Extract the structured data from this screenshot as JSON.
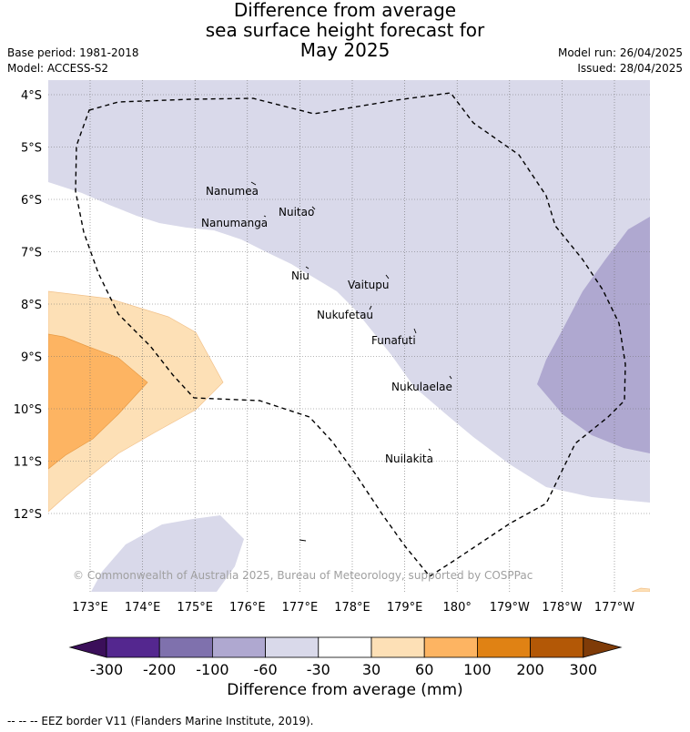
{
  "title": {
    "line1": "Difference from average",
    "line2": "sea surface height forecast for",
    "line3": "May 2025"
  },
  "meta": {
    "base_period": "Base period: 1981-2018",
    "model": "Model: ACCESS-S2",
    "model_run": "Model run: 26/04/2025",
    "issued": "Issued: 28/04/2025"
  },
  "map": {
    "lat_labels": [
      "4°S",
      "5°S",
      "6°S",
      "7°S",
      "8°S",
      "9°S",
      "10°S",
      "11°S",
      "12°S"
    ],
    "lon_labels": [
      "173°E",
      "174°E",
      "175°E",
      "176°E",
      "177°E",
      "178°E",
      "179°E",
      "180°",
      "179°W",
      "178°W",
      "177°W"
    ],
    "places": [
      {
        "name": "Nanumea"
      },
      {
        "name": "Nuitao"
      },
      {
        "name": "Nanumanga"
      },
      {
        "name": "Niu"
      },
      {
        "name": "Vaitupu"
      },
      {
        "name": "Nukufetau"
      },
      {
        "name": "Funafuti"
      },
      {
        "name": "Nukulaelae"
      },
      {
        "name": "Nuilakita"
      }
    ],
    "copyright": "© Commonwealth of Australia 2025, Bureau of Meteorology, supported by COSPPac"
  },
  "legend": {
    "title": "Difference from average (mm)",
    "tick_labels": [
      "-300",
      "-200",
      "-100",
      "-60",
      "-30",
      "30",
      "60",
      "100",
      "200",
      "300"
    ],
    "colors": [
      "#3b0f5a",
      "#54278f",
      "#7f71ad",
      "#afa8d0",
      "#d9d9ea",
      "#ffffff",
      "#fde0b6",
      "#fdb462",
      "#e08214",
      "#b35806",
      "#7f3b08"
    ]
  },
  "footnote": "-- -- -- EEZ border V11 (Flanders Marine Institute, 2019)."
}
